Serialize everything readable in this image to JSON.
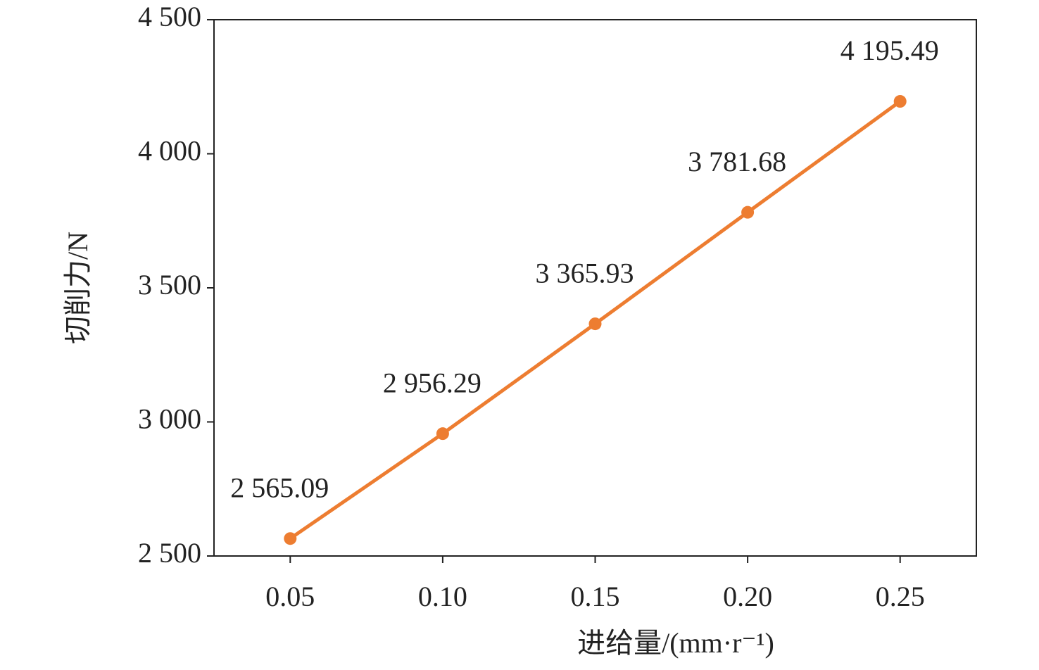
{
  "chart_data": {
    "type": "line",
    "x_label": "进给量/(mm·r⁻¹)",
    "y_label": "切削力/N",
    "x": [
      0.05,
      0.1,
      0.15,
      0.2,
      0.25
    ],
    "series": [
      {
        "color": "#ed7d31",
        "values": [
          2565.09,
          2956.29,
          3365.93,
          3781.68,
          4195.49
        ],
        "value_labels": [
          "2 565.09",
          "2 956.29",
          "3 365.93",
          "3 781.68",
          "4 195.49"
        ]
      }
    ],
    "xlim": [
      0.025,
      0.275
    ],
    "xticks": [
      0.05,
      {
        "value": 0.1,
        "label": "0.10"
      },
      0.15,
      {
        "value": 0.2,
        "label": "0.20"
      },
      0.25
    ],
    "ylim": [
      2500,
      4500
    ],
    "yticks": [
      {
        "value": 2500,
        "label": "2 500"
      },
      {
        "value": 3000,
        "label": "3 000"
      },
      {
        "value": 3500,
        "label": "3 500"
      },
      {
        "value": 4000,
        "label": "4 000"
      },
      {
        "value": 4500,
        "label": "4 500"
      }
    ],
    "grid": false
  }
}
